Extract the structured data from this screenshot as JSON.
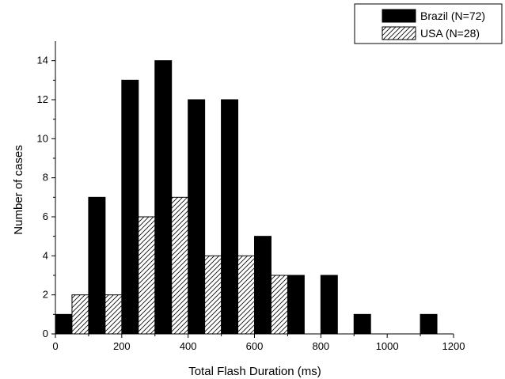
{
  "chart_data": {
    "type": "bar",
    "xlabel": "Total Flash Duration (ms)",
    "ylabel": "Number of cases",
    "xlim": [
      0,
      1200
    ],
    "ylim": [
      0,
      15
    ],
    "xticks": [
      0,
      200,
      400,
      600,
      800,
      1000,
      1200
    ],
    "yticks": [
      0,
      2,
      4,
      6,
      8,
      10,
      12,
      14
    ],
    "bin_width": 100,
    "grid": false,
    "legend_position": "top-right",
    "series": [
      {
        "name": "Brazil (N=72)",
        "fill": "#000000",
        "pattern": "solid",
        "bin_starts": [
          0,
          100,
          200,
          300,
          400,
          500,
          600,
          700,
          800,
          900,
          1000,
          1100
        ],
        "values": [
          1,
          7,
          13,
          14,
          12,
          12,
          5,
          3,
          3,
          1,
          0,
          1
        ]
      },
      {
        "name": "USA (N=28)",
        "fill": "#ffffff",
        "pattern": "diagonal-hatch",
        "bin_starts": [
          0,
          100,
          200,
          300,
          400,
          500,
          600
        ],
        "values": [
          2,
          2,
          6,
          7,
          4,
          4,
          3
        ]
      }
    ]
  }
}
